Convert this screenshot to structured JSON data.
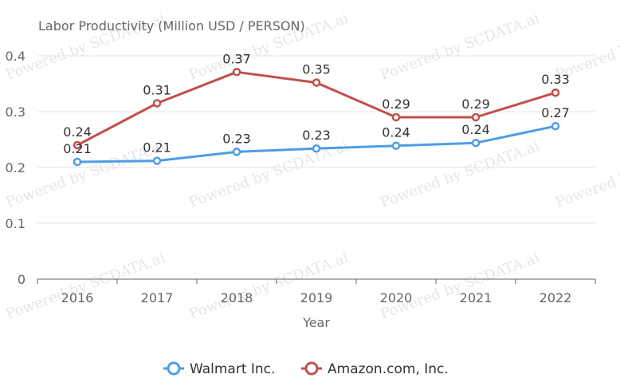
{
  "watermark": "Powered by SCDATA.ai",
  "chart_data": {
    "type": "line",
    "title": "",
    "unit_label": "Labor Productivity (Million USD / PERSON)",
    "xlabel": "Year",
    "ylabel": "",
    "categories": [
      "2016",
      "2017",
      "2018",
      "2019",
      "2020",
      "2021",
      "2022"
    ],
    "ylim": [
      0,
      0.4
    ],
    "yticks": [
      "0",
      "0.1",
      "0.2",
      "0.3",
      "0.4"
    ],
    "grid": true,
    "legend": "bottom-center",
    "series": [
      {
        "name": "Walmart Inc.",
        "color": "#4e9de5",
        "values": [
          0.21,
          0.212,
          0.228,
          0.234,
          0.239,
          0.244,
          0.274
        ],
        "labels": [
          "0.21",
          "0.21",
          "0.23",
          "0.23",
          "0.24",
          "0.24",
          "0.27"
        ]
      },
      {
        "name": "Amazon.com, Inc.",
        "color": "#c0504d",
        "values": [
          0.24,
          0.315,
          0.371,
          0.352,
          0.29,
          0.29,
          0.334
        ],
        "labels": [
          "0.24",
          "0.31",
          "0.37",
          "0.35",
          "0.29",
          "0.29",
          "0.33"
        ]
      }
    ]
  }
}
